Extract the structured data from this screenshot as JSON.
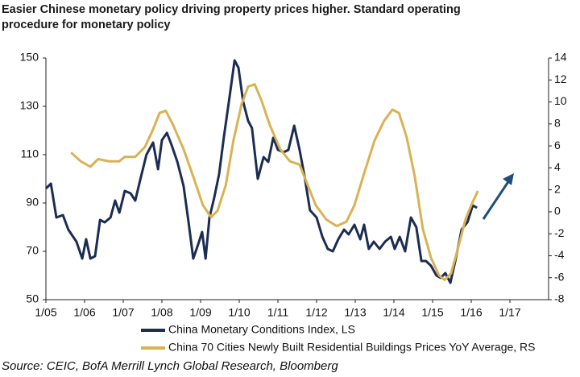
{
  "chart_data": {
    "type": "line",
    "title": [
      "Easier Chinese monetary policy driving property prices higher. Standard operating",
      "procedure for monetary policy"
    ],
    "source": "Source: CEIC, BofA Merrill Lynch Global Research, Bloomberg",
    "xlim": [
      2005,
      2018
    ],
    "xticks": [
      {
        "value": 2005,
        "label": "1/05"
      },
      {
        "value": 2006,
        "label": "1/06"
      },
      {
        "value": 2007,
        "label": "1/07"
      },
      {
        "value": 2008,
        "label": "1/08"
      },
      {
        "value": 2009,
        "label": "1/09"
      },
      {
        "value": 2010,
        "label": "1/10"
      },
      {
        "value": 2011,
        "label": "1/11"
      },
      {
        "value": 2012,
        "label": "1/12"
      },
      {
        "value": 2013,
        "label": "1/13"
      },
      {
        "value": 2014,
        "label": "1/14"
      },
      {
        "value": 2015,
        "label": "1/15"
      },
      {
        "value": 2016,
        "label": "1/16"
      },
      {
        "value": 2017,
        "label": "1/17"
      }
    ],
    "ylim": [
      50,
      150
    ],
    "yticks": [
      50,
      70,
      90,
      110,
      130,
      150
    ],
    "y2lim": [
      -8,
      14
    ],
    "y2ticks": [
      -8,
      -6,
      -4,
      -2,
      0,
      2,
      4,
      6,
      8,
      10,
      12,
      14
    ],
    "grid": false,
    "series": [
      {
        "name": "China Monetary Conditions Index, LS",
        "color": "#1c2d52",
        "axis": "y",
        "x": [
          2005,
          2005.13,
          2005.27,
          2005.44,
          2005.58,
          2005.79,
          2005.94,
          2006.04,
          2006.15,
          2006.27,
          2006.4,
          2006.52,
          2006.67,
          2006.79,
          2006.9,
          2007.04,
          2007.19,
          2007.31,
          2007.46,
          2007.6,
          2007.77,
          2007.9,
          2008,
          2008.13,
          2008.25,
          2008.4,
          2008.56,
          2008.69,
          2008.81,
          2008.94,
          2009.04,
          2009.13,
          2009.23,
          2009.35,
          2009.48,
          2009.6,
          2009.75,
          2009.88,
          2009.98,
          2010.1,
          2010.23,
          2010.33,
          2010.48,
          2010.63,
          2010.75,
          2010.88,
          2011,
          2011.15,
          2011.27,
          2011.42,
          2011.56,
          2011.69,
          2011.83,
          2012,
          2012.15,
          2012.29,
          2012.42,
          2012.56,
          2012.71,
          2012.83,
          2012.98,
          2013.13,
          2013.23,
          2013.35,
          2013.48,
          2013.63,
          2013.77,
          2013.92,
          2014.02,
          2014.15,
          2014.29,
          2014.44,
          2014.58,
          2014.71,
          2014.83,
          2014.96,
          2015.1,
          2015.21,
          2015.33,
          2015.46,
          2015.6,
          2015.75,
          2015.9,
          2016.04,
          2016.15
        ],
        "values": [
          96,
          98,
          84,
          85,
          79,
          74,
          67,
          75,
          67,
          68,
          83,
          82,
          84,
          91,
          86,
          95,
          94,
          91,
          101,
          110,
          115,
          104,
          116,
          119,
          114,
          107,
          97,
          82,
          67,
          73,
          78,
          67,
          84,
          92,
          102,
          117,
          134,
          149,
          146,
          132,
          124,
          121,
          100,
          109,
          107,
          117,
          112,
          111,
          112,
          122,
          112,
          101,
          87,
          84,
          76,
          71,
          70,
          75,
          79,
          77,
          81,
          75,
          81,
          71,
          74,
          71,
          74,
          76,
          71,
          76,
          70,
          84,
          80,
          66,
          66,
          64,
          60,
          59,
          61,
          57,
          67,
          79,
          82,
          89,
          88
        ]
      },
      {
        "name": "China 70 Cities Newly Built Residential Buildings Prices YoY Average, RS",
        "color": "#d9b254",
        "axis": "y2",
        "x": [
          2005.65,
          2005.9,
          2006.15,
          2006.35,
          2006.63,
          2006.9,
          2007.04,
          2007.31,
          2007.56,
          2007.77,
          2007.94,
          2008.1,
          2008.29,
          2008.56,
          2008.81,
          2009.06,
          2009.27,
          2009.44,
          2009.65,
          2009.85,
          2010.06,
          2010.23,
          2010.4,
          2010.58,
          2010.79,
          2011.06,
          2011.31,
          2011.56,
          2011.73,
          2011.98,
          2012.25,
          2012.52,
          2012.77,
          2012.98,
          2013.23,
          2013.5,
          2013.75,
          2013.96,
          2014.13,
          2014.33,
          2014.54,
          2014.75,
          2014.96,
          2015.17,
          2015.31,
          2015.48,
          2015.65,
          2015.85,
          2016,
          2016.17
        ],
        "values": [
          5.4,
          4.6,
          4.1,
          4.8,
          4.6,
          4.6,
          5,
          5,
          5.9,
          7.5,
          9,
          9.2,
          7.9,
          5.7,
          3.2,
          0.6,
          -0.5,
          0.1,
          2.4,
          6.5,
          9.8,
          11.4,
          11.6,
          10.1,
          7.9,
          5.7,
          4.6,
          4.3,
          2.8,
          0.6,
          -0.7,
          -1.3,
          -0.9,
          0.6,
          3.5,
          6.5,
          8.3,
          9.3,
          9,
          6.8,
          3.2,
          -1.6,
          -4.2,
          -5.8,
          -6.2,
          -5.6,
          -3.4,
          -0.7,
          0.6,
          1.9
        ]
      }
    ]
  }
}
